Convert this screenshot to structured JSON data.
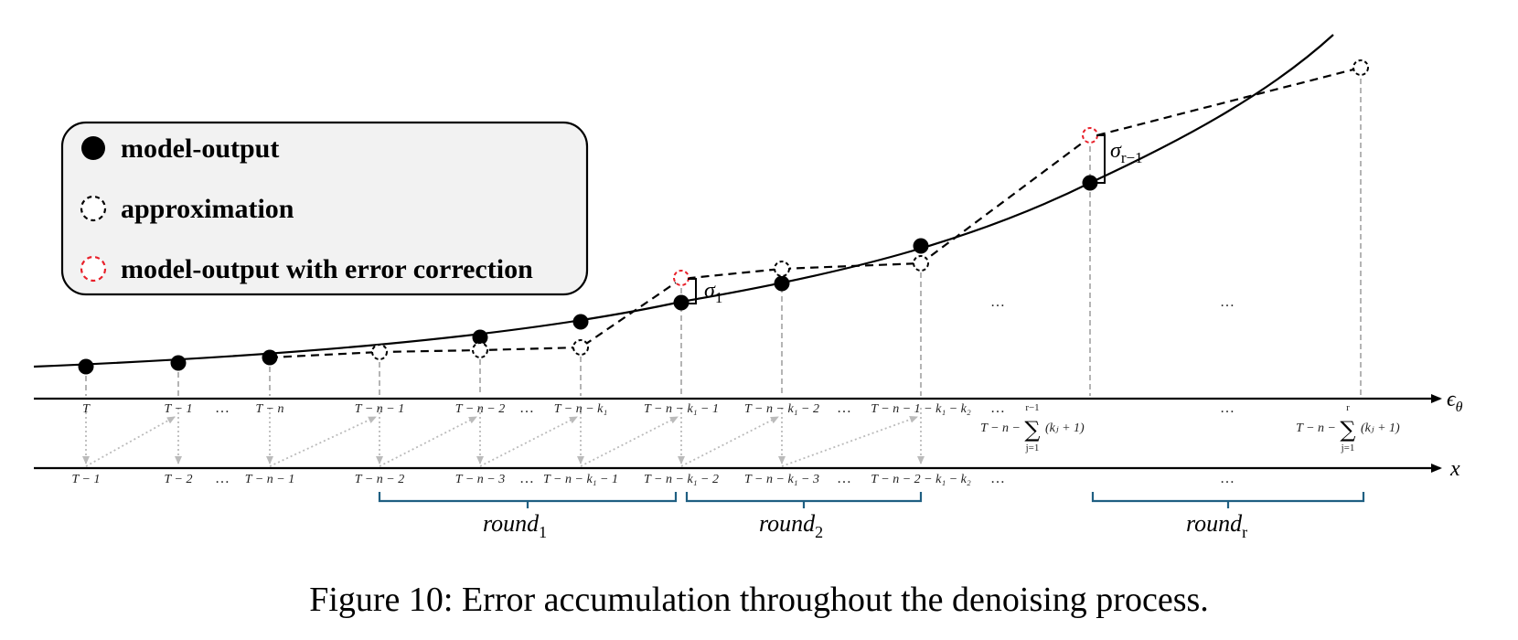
{
  "legend": {
    "items": [
      {
        "label": "model-output",
        "marker": "filled"
      },
      {
        "label": "approximation",
        "marker": "dashed-black"
      },
      {
        "label": "model-output with error correction",
        "marker": "dashed-red"
      }
    ]
  },
  "axes": {
    "epsilon_label": "ϵ",
    "epsilon_sub": "θ",
    "x_label": "x"
  },
  "epsilon_ticks": [
    "T",
    "T − 1",
    "T − n",
    "T − n − 1",
    "T − n − 2",
    "T − n − k₁",
    "T − n − k₁ − 1",
    "T − n − k₁ − 2",
    "T − n − 1 − k₁ − k₂"
  ],
  "x_ticks": [
    "T − 1",
    "T − 2",
    "T − n − 1",
    "T − n − 2",
    "T − n − 3",
    "T − n − k₁ − 1",
    "T − n − k₁ − 2",
    "T − n − k₁ − 3",
    "T − n − 2 − k₁ − k₂"
  ],
  "sum_ticks": {
    "left_prefix": "T − n −",
    "sum": "∑",
    "upper_1": "r−1",
    "upper_2": "r",
    "lower": "j=1",
    "term": "(kⱼ + 1)"
  },
  "ellipsis": "…",
  "sigma": {
    "first": "σ",
    "first_sub": "1",
    "last": "σ",
    "last_sub": "r−1"
  },
  "rounds": [
    {
      "base": "round",
      "sub": "1"
    },
    {
      "base": "round",
      "sub": "2"
    },
    {
      "base": "round",
      "sub": "r"
    }
  ],
  "caption": "Figure 10: Error accumulation throughout the denoising process.",
  "colors": {
    "red": "#e8202a",
    "brace": "#1f5f82",
    "gray": "#b4b4b4",
    "legend_bg": "#f2f2f2"
  }
}
